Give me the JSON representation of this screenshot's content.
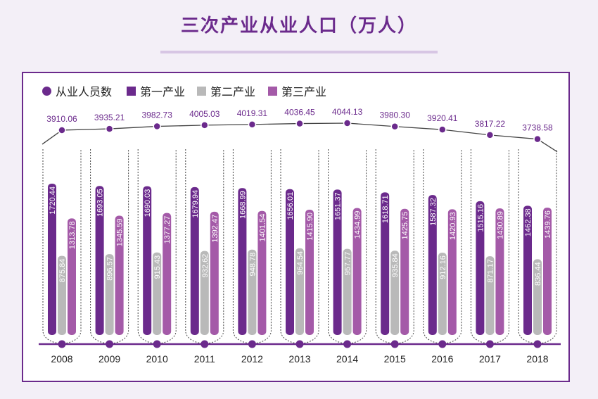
{
  "title": "三次产业从业人口（万人）",
  "colors": {
    "accent": "#6b2a8c",
    "primary": "#6b2a8c",
    "secondary": "#b9b9b9",
    "tertiary": "#a45aa8",
    "background": "#f3eff7"
  },
  "legend": [
    {
      "label": "从业人员数",
      "shape": "dot",
      "color": "#6b2a8c"
    },
    {
      "label": "第一产业",
      "shape": "bar",
      "color": "#6b2a8c"
    },
    {
      "label": "第二产业",
      "shape": "bar",
      "color": "#b9b9b9"
    },
    {
      "label": "第三产业",
      "shape": "bar",
      "color": "#a45aa8"
    }
  ],
  "chart_data": {
    "type": "bar",
    "categories": [
      "2008",
      "2009",
      "2010",
      "2011",
      "2012",
      "2013",
      "2014",
      "2015",
      "2016",
      "2017",
      "2018"
    ],
    "series": [
      {
        "name": "第一产业",
        "color": "#6b2a8c",
        "values": [
          1720.44,
          1693.05,
          1690.03,
          1679.94,
          1668.99,
          1656.01,
          1651.37,
          1618.71,
          1587.32,
          1515.16,
          1462.38
        ],
        "labels": [
          "1720.44",
          "1693.05",
          "1690.03",
          "1679.94",
          "1668.99",
          "1656.01",
          "1651.37",
          "1618.71",
          "1587.32",
          "1515.16",
          "1462.38"
        ]
      },
      {
        "name": "第二产业",
        "color": "#b9b9b9",
        "values": [
          875.84,
          896.57,
          915.43,
          932.62,
          948.78,
          964.54,
          957.77,
          935.84,
          912.16,
          871.17,
          836.44
        ],
        "labels": [
          "875.84",
          "896.57",
          "915.43",
          "932.62",
          "948.78",
          "964.54",
          "957.77",
          "935.84",
          "912.16",
          "871.17",
          "836.44"
        ]
      },
      {
        "name": "第三产业",
        "color": "#a45aa8",
        "values": [
          1313.78,
          1345.59,
          1377.27,
          1392.47,
          1401.54,
          1415.9,
          1434.99,
          1425.75,
          1420.93,
          1430.89,
          1439.76
        ],
        "labels": [
          "1313.78",
          "1345.59",
          "1377.27",
          "1392.47",
          "1401.54",
          "1415.90",
          "1434.99",
          "1425.75",
          "1420.93",
          "1430.89",
          "1439.76"
        ]
      }
    ],
    "line": {
      "name": "从业人员数",
      "color": "#6b2a8c",
      "values": [
        3910.06,
        3935.21,
        3982.73,
        4005.03,
        4019.31,
        4036.45,
        4044.13,
        3980.3,
        3920.41,
        3817.22,
        3738.58
      ],
      "labels": [
        "3910.06",
        "3935.21",
        "3982.73",
        "4005.03",
        "4019.31",
        "4036.45",
        "4044.13",
        "3980.30",
        "3920.41",
        "3817.22",
        "3738.58"
      ]
    },
    "ylim_bars": [
      0,
      1950
    ],
    "legend_position": "top-left",
    "grid": false
  }
}
